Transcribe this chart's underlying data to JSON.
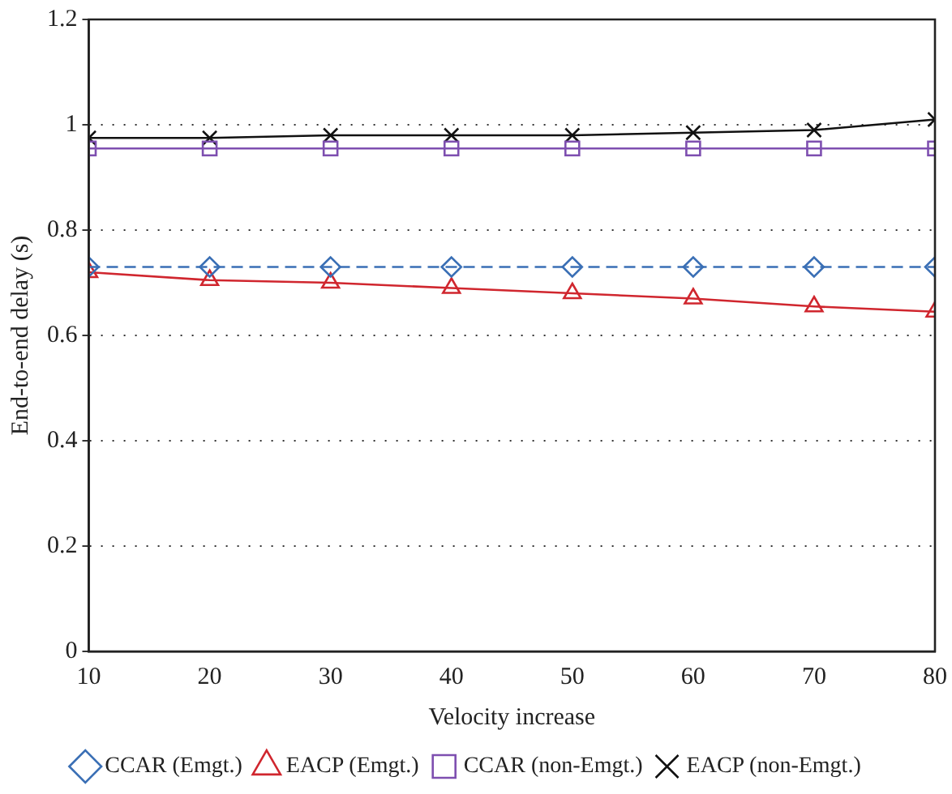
{
  "chart_data": {
    "type": "line",
    "xlabel": "Velocity increase",
    "ylabel": "End-to-end delay (s)",
    "x": [
      10,
      20,
      30,
      40,
      50,
      60,
      70,
      80
    ],
    "xlim": [
      10,
      80
    ],
    "xticks": [
      10,
      20,
      30,
      40,
      50,
      60,
      70,
      80
    ],
    "ylim": [
      0,
      1.2
    ],
    "yticks": [
      0,
      0.2,
      0.4,
      0.6,
      0.8,
      1,
      1.2
    ],
    "grid": "y",
    "legend": "bottom",
    "series": [
      {
        "name": "CCAR (Emgt.)",
        "color": "#3a6fb5",
        "marker": "diamond",
        "line_style": "dashed",
        "values": [
          0.73,
          0.73,
          0.73,
          0.73,
          0.73,
          0.73,
          0.73,
          0.73
        ]
      },
      {
        "name": "EACP (Emgt.)",
        "color": "#d0262e",
        "marker": "triangle",
        "line_style": "solid",
        "values": [
          0.72,
          0.705,
          0.7,
          0.69,
          0.68,
          0.67,
          0.655,
          0.645
        ]
      },
      {
        "name": "CCAR (non-Emgt.)",
        "color": "#7e4fb0",
        "marker": "square",
        "line_style": "solid",
        "values": [
          0.955,
          0.955,
          0.955,
          0.955,
          0.955,
          0.955,
          0.955,
          0.955
        ]
      },
      {
        "name": "EACP (non-Emgt.)",
        "color": "#111111",
        "marker": "cross",
        "line_style": "solid",
        "values": [
          0.975,
          0.975,
          0.98,
          0.98,
          0.98,
          0.985,
          0.99,
          1.01
        ]
      }
    ]
  }
}
